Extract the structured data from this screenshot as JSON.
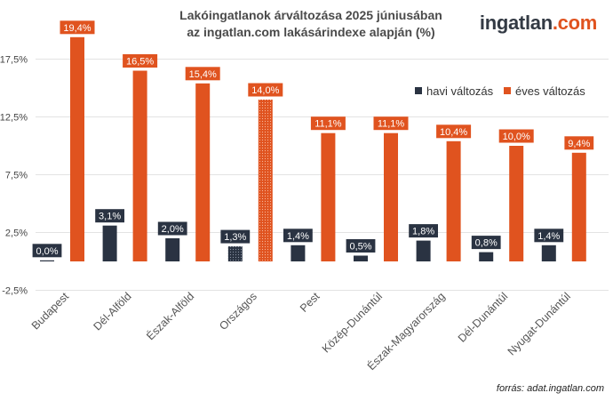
{
  "title": {
    "line1": "Lakóingatlanok árváltozása 2025 júniusában",
    "line2": "az ingatlan.com lakásárindexe alapján (%)"
  },
  "logo": {
    "prefix": "ingatlan",
    "suffix": ".com"
  },
  "source": "forrás: adat.ingatlan.com",
  "colors": {
    "havi": "#2a3342",
    "eves": "#e0531f",
    "grid": "#e3e3e3"
  },
  "chart_data": {
    "type": "bar",
    "categories": [
      "Budapest",
      "Dél-Alföld",
      "Észak-Alföld",
      "Országos",
      "Pest",
      "Közép-Dunántúl",
      "Észak-Magyarország",
      "Dél-Dunántúl",
      "Nyugat-Dunántúl"
    ],
    "series": [
      {
        "name": "havi változás",
        "values": [
          0.0,
          3.1,
          2.0,
          1.3,
          1.4,
          0.5,
          1.8,
          0.8,
          1.4
        ],
        "labels": [
          "0,0%",
          "3,1%",
          "2,0%",
          "1,3%",
          "1,4%",
          "0,5%",
          "1,8%",
          "0,8%",
          "1,4%"
        ]
      },
      {
        "name": "éves változás",
        "values": [
          19.4,
          16.5,
          15.4,
          14.0,
          11.1,
          11.1,
          10.4,
          10.0,
          9.4
        ],
        "labels": [
          "19,4%",
          "16,5%",
          "15,4%",
          "14,0%",
          "11,1%",
          "11,1%",
          "10,4%",
          "10,0%",
          "9,4%"
        ]
      }
    ],
    "highlight_category": "Országos",
    "yticks": [
      -2.5,
      2.5,
      7.5,
      12.5,
      17.5
    ],
    "ytick_labels": [
      "-2,5%",
      "2,5%",
      "7,5%",
      "12,5%",
      "17,5%"
    ],
    "ylim": [
      -2.5,
      19.4
    ],
    "grid": true,
    "legend": "top-right"
  }
}
